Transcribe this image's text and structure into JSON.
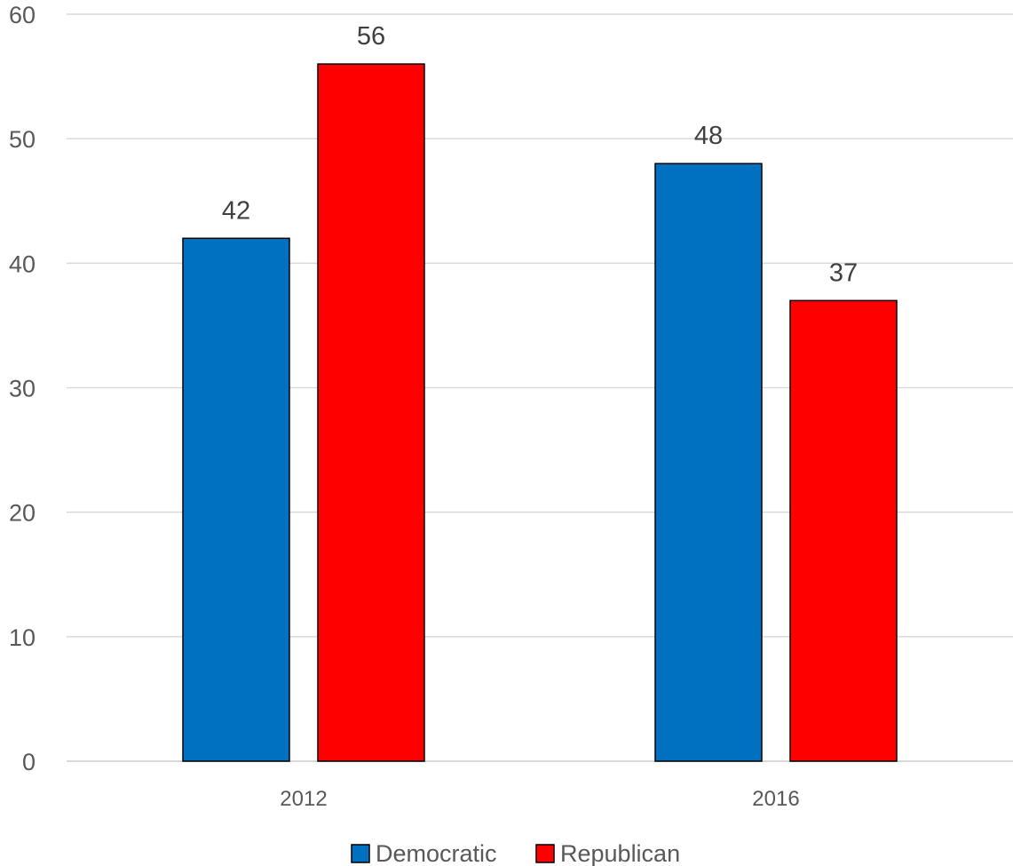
{
  "chart_data": {
    "type": "bar",
    "categories": [
      "2012",
      "2016"
    ],
    "series": [
      {
        "name": "Democratic",
        "values": [
          42,
          48
        ],
        "color": "#0070C0"
      },
      {
        "name": "Republican",
        "values": [
          56,
          37
        ],
        "color": "#FF0000"
      }
    ],
    "ylim": [
      0,
      60
    ],
    "yticks": [
      0,
      10,
      20,
      30,
      40,
      50,
      60
    ],
    "grid": true,
    "data_labels": true,
    "legend": "bottom"
  }
}
